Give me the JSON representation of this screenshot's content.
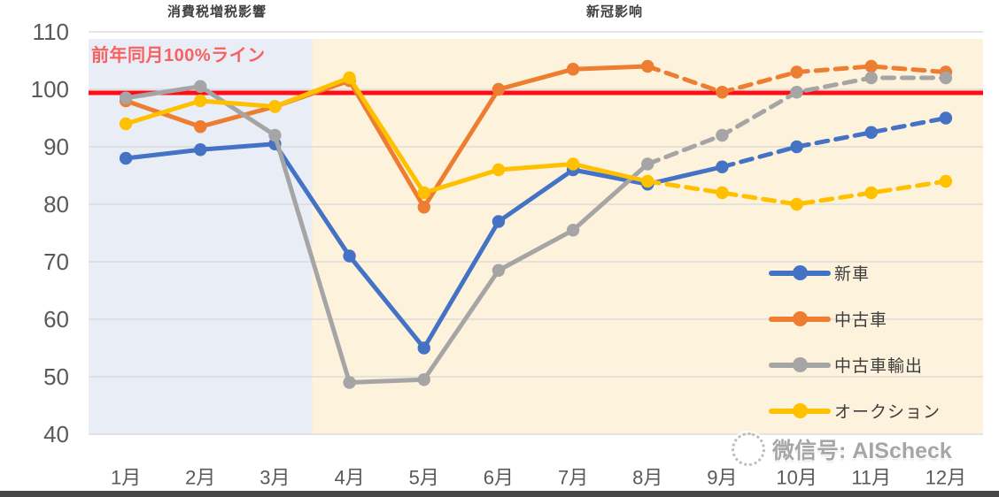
{
  "annotations": {
    "tax_impact": "消費税増税影響",
    "covid_impact": "新冠影响"
  },
  "watermark": {
    "text": "微信号: AIScheck"
  },
  "colors": {
    "grid": "#d8d8d8",
    "axis_text": "#595959",
    "baseline_line": "#fe0d19",
    "baseline_text": "#f96060",
    "region_tax": "#e9edf6",
    "region_covid": "#fdf2dc",
    "bottom_bar": "#474747"
  },
  "chart_data": {
    "type": "line",
    "title": "",
    "xlabel": "",
    "ylabel": "",
    "x": [
      "1月",
      "2月",
      "3月",
      "4月",
      "5月",
      "6月",
      "7月",
      "8月",
      "9月",
      "10月",
      "11月",
      "12月"
    ],
    "ylim": [
      40,
      110
    ],
    "yticks": [
      40,
      50,
      60,
      70,
      80,
      90,
      100,
      110
    ],
    "grid": true,
    "legend_position": "inside-right",
    "baseline": {
      "value": 100,
      "label": "前年同月100%ライン",
      "color": "#fe0d19"
    },
    "regions": [
      {
        "key": "tax-impact",
        "name": "消費税増税影響",
        "from": 0,
        "to": 2,
        "color": "#e9edf6"
      },
      {
        "key": "covid-impact",
        "name": "新冠影响",
        "from": 3,
        "to": 11,
        "color": "#fdf2dc"
      }
    ],
    "series": [
      {
        "key": "new-cars",
        "name": "新車",
        "color": "#4472c4",
        "dash_from": 8,
        "values": [
          88,
          89.5,
          90.5,
          71,
          55,
          77,
          86,
          83.5,
          86.5,
          90,
          92.5,
          95
        ]
      },
      {
        "key": "used-cars",
        "name": "中古車",
        "color": "#ed7d31",
        "dash_from": 7,
        "values": [
          98,
          93.5,
          97,
          101.5,
          79.5,
          100,
          103.5,
          104,
          99.5,
          103,
          104,
          103
        ]
      },
      {
        "key": "used-car-exports",
        "name": "中古車輸出",
        "color": "#a5a5a5",
        "dash_from": 7,
        "values": [
          98.5,
          100.5,
          92,
          49,
          49.5,
          68.5,
          75.5,
          87,
          92,
          99.5,
          102,
          102
        ]
      },
      {
        "key": "auction",
        "name": "オークション",
        "color": "#ffc000",
        "dash_from": 7,
        "values": [
          94,
          98,
          97,
          102,
          82,
          86,
          87,
          84,
          82,
          80,
          82,
          84
        ]
      }
    ]
  }
}
